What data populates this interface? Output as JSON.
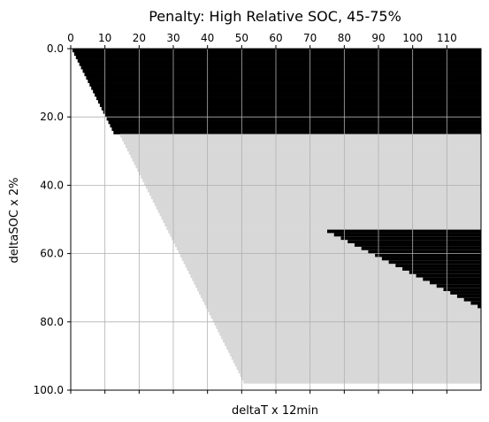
{
  "chart_data": {
    "type": "heatmap",
    "title": "Penalty: High Relative SOC, 45-75%",
    "xlabel": "deltaT x 12min",
    "ylabel": "deltaSOC x 2%",
    "x_tick_position": "top",
    "x_ticks": [
      0,
      10,
      20,
      30,
      40,
      50,
      60,
      70,
      80,
      90,
      100,
      110
    ],
    "x_tick_labels": [
      "0",
      "10",
      "20",
      "30",
      "40",
      "50",
      "60",
      "70",
      "80",
      "90",
      "100",
      "110"
    ],
    "y_ticks": [
      0,
      20,
      40,
      60,
      80,
      100
    ],
    "y_tick_labels": [
      "0.0",
      "20.0",
      "40.0",
      "60.0",
      "80.0",
      "100.0"
    ],
    "xlim": [
      0,
      120
    ],
    "ylim": [
      100,
      0
    ],
    "y_inverted": true,
    "grid": true,
    "grid_color": "#b0b0b0",
    "colors": {
      "white": "#ffffff",
      "gray": "#d8d8d8",
      "black": "#000000"
    },
    "regions": [
      {
        "name": "upper_black",
        "color": "black",
        "description_rows": "deltaSOC 0-24, from x = 0.5 + y/2 to 120"
      },
      {
        "name": "gray_band",
        "color": "gray",
        "description_rows": "deltaSOC 25-97, from x = 2 + y/2 to 120"
      },
      {
        "name": "right_black",
        "color": "black",
        "description_rows": "deltaSOC 53-76, from x = 75 + 2*(y-53) to 120"
      }
    ],
    "boundaries": {
      "upper_black_rows": [
        0,
        24
      ],
      "gray_rows": [
        25,
        97
      ],
      "right_black_rows": [
        53,
        76
      ],
      "right_black_start_x": 75,
      "right_black_slope": 2,
      "diagonal_slope": 0.5
    }
  }
}
